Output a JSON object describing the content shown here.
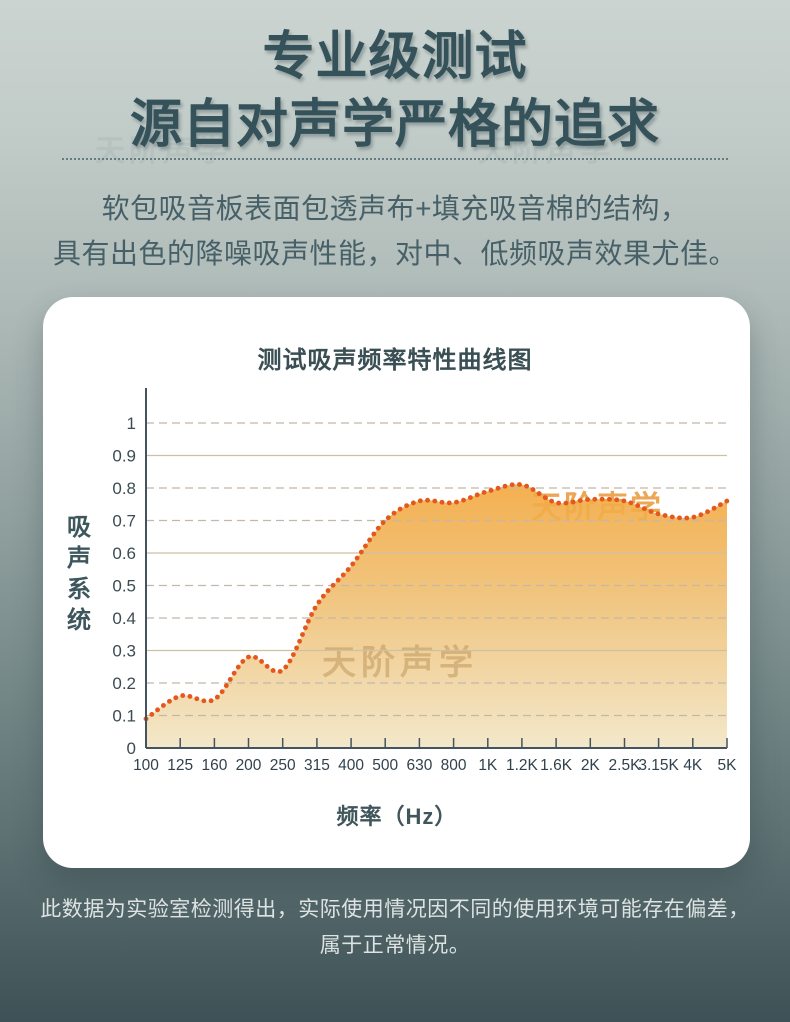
{
  "page": {
    "title_line1": "专业级测试",
    "title_line2": "源自对声学严格的追求",
    "body_line1": "软包吸音板表面包透声布+填充吸音棉的结构，",
    "body_line2": "具有出色的降噪吸声性能，对中、低频吸声效果尤佳。",
    "footer_line1": "此数据为实验室检测得出，实际使用情况因不同的使用环境可能存在偏差，",
    "footer_line2": "属于正常情况。",
    "watermark": "天阶声学"
  },
  "chart_data": {
    "type": "area",
    "title": "测试吸声频率特性曲线图",
    "xlabel": "频率（Hz）",
    "ylabel": "吸声系统",
    "categories": [
      "100",
      "125",
      "160",
      "200",
      "250",
      "315",
      "400",
      "500",
      "630",
      "800",
      "1K",
      "1.2K",
      "1.6K",
      "2K",
      "2.5K",
      "3.15K",
      "4K",
      "5K"
    ],
    "values": [
      0.09,
      0.16,
      0.15,
      0.28,
      0.24,
      0.44,
      0.56,
      0.7,
      0.76,
      0.755,
      0.79,
      0.81,
      0.755,
      0.765,
      0.76,
      0.72,
      0.71,
      0.76
    ],
    "ylim": [
      0,
      1.1
    ],
    "yticks": [
      0,
      0.1,
      0.2,
      0.3,
      0.4,
      0.5,
      0.6,
      0.7,
      0.8,
      0.9,
      1
    ],
    "ytick_labels": [
      "0",
      "0.1",
      "0.2",
      "0.3",
      "0.4",
      "0.5",
      "0.6",
      "0.7",
      "0.8",
      "0.9",
      "1"
    ],
    "grid": {
      "solid_at": [
        0.3,
        0.6,
        0.9
      ],
      "dashed_at": [
        0.1,
        0.2,
        0.4,
        0.5,
        0.7,
        0.8,
        1.0
      ]
    },
    "legend_position": "none",
    "line_style": "dotted",
    "colors": {
      "line": "#e4581d",
      "fill_top": "#f3a538",
      "fill_mid": "#efc279",
      "fill_bottom": "#f2e5c5",
      "grid_dashed": "#c3b8a9",
      "grid_solid": "#cdc1a2",
      "axis": "#44545e",
      "watermark_on_fill": "#b08648",
      "watermark_orange": "#eaa24e"
    },
    "watermark_text": "天阶声学"
  }
}
